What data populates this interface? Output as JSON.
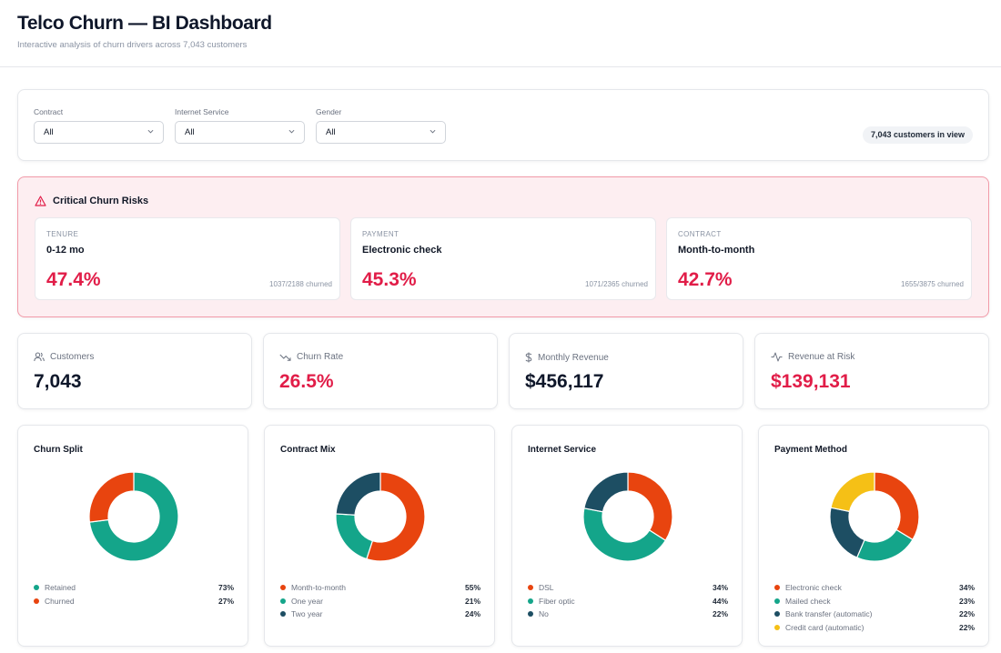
{
  "header": {
    "title": "Telco Churn — BI Dashboard",
    "subtitle": "Interactive analysis of churn drivers across 7,043 customers"
  },
  "filters": {
    "contract": {
      "label": "Contract",
      "value": "All"
    },
    "internet": {
      "label": "Internet Service",
      "value": "All"
    },
    "gender": {
      "label": "Gender",
      "value": "All"
    },
    "count_pill": "7,043 customers in view"
  },
  "risks": {
    "title": "Critical Churn Risks",
    "cards": [
      {
        "category": "TENURE",
        "name": "0-12 mo",
        "pct": "47.4%",
        "ratio": "1037/2188 churned"
      },
      {
        "category": "PAYMENT",
        "name": "Electronic check",
        "pct": "45.3%",
        "ratio": "1071/2365 churned"
      },
      {
        "category": "CONTRACT",
        "name": "Month-to-month",
        "pct": "42.7%",
        "ratio": "1655/3875 churned"
      }
    ]
  },
  "kpis": [
    {
      "label": "Customers",
      "value": "7,043",
      "icon": "users-icon"
    },
    {
      "label": "Churn Rate",
      "value": "26.5%",
      "icon": "trending-down-icon"
    },
    {
      "label": "Monthly Revenue",
      "value": "$456,117",
      "icon": "dollar-icon"
    },
    {
      "label": "Revenue at Risk",
      "value": "$139,131",
      "icon": "activity-icon"
    }
  ],
  "colors": {
    "teal": "#14a58a",
    "orange": "#e8440f",
    "navy": "#1d4e63",
    "yellow": "#f5c016",
    "risk_red": "#e11d48"
  },
  "chart_data": [
    {
      "type": "pie",
      "title": "Churn Split",
      "categories": [
        "Retained",
        "Churned"
      ],
      "values": [
        73,
        27
      ],
      "labels": [
        "73%",
        "27%"
      ],
      "colors": [
        "#14a58a",
        "#e8440f"
      ]
    },
    {
      "type": "pie",
      "title": "Contract Mix",
      "categories": [
        "Month-to-month",
        "One year",
        "Two year"
      ],
      "values": [
        55,
        21,
        24
      ],
      "labels": [
        "55%",
        "21%",
        "24%"
      ],
      "colors": [
        "#e8440f",
        "#14a58a",
        "#1d4e63"
      ]
    },
    {
      "type": "pie",
      "title": "Internet Service",
      "categories": [
        "DSL",
        "Fiber optic",
        "No"
      ],
      "values": [
        34,
        44,
        22
      ],
      "labels": [
        "34%",
        "44%",
        "22%"
      ],
      "colors": [
        "#e8440f",
        "#14a58a",
        "#1d4e63"
      ]
    },
    {
      "type": "pie",
      "title": "Payment Method",
      "categories": [
        "Electronic check",
        "Mailed check",
        "Bank transfer (automatic)",
        "Credit card (automatic)"
      ],
      "values": [
        34,
        23,
        22,
        22
      ],
      "labels": [
        "34%",
        "23%",
        "22%",
        "22%"
      ],
      "colors": [
        "#e8440f",
        "#14a58a",
        "#1d4e63",
        "#f5c016"
      ]
    }
  ]
}
